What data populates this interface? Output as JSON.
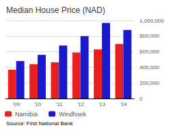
{
  "chart_data": {
    "type": "bar",
    "title": "Median House Price (NAD)",
    "source": "Source: First National Bank",
    "categories": [
      "'09",
      "'10",
      "'11",
      "'12",
      "'13",
      "'14"
    ],
    "series": [
      {
        "name": "Namibia",
        "color": "#e82020",
        "values": [
          370000,
          440000,
          465000,
          590000,
          630000,
          700000
        ]
      },
      {
        "name": "Windhoek",
        "color": "#1a1acc",
        "values": [
          480000,
          560000,
          680000,
          800000,
          970000,
          880000
        ]
      }
    ],
    "ylim": [
      0,
      1000000
    ],
    "yticks": [
      0,
      {
        "value": 200000,
        "label": "200,000"
      },
      {
        "value": 400000,
        "label": "400,000"
      },
      {
        "value": 600000,
        "label": "600,000"
      },
      {
        "value": 800000,
        "label": "800,000"
      },
      {
        "value": 1000000,
        "label": "1,000,000"
      }
    ],
    "grid": true,
    "legend": "bottom"
  }
}
